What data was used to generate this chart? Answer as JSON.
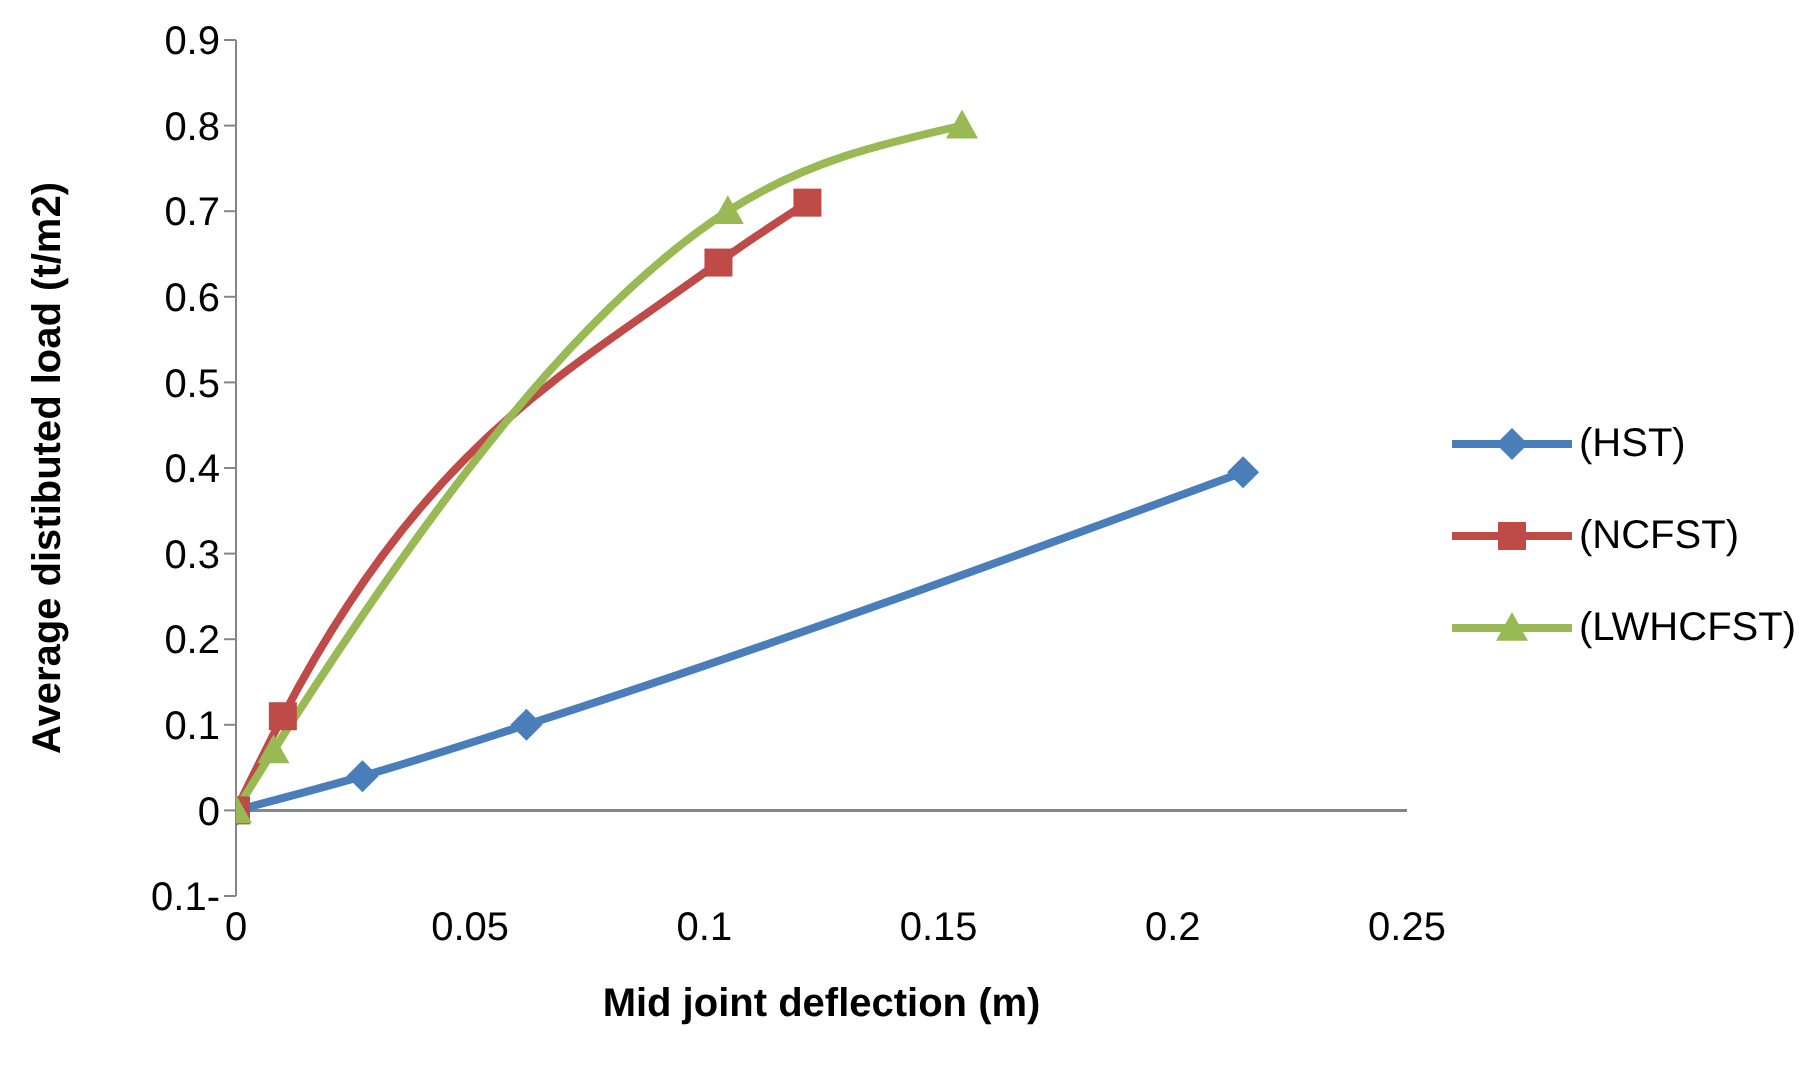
{
  "chart_data": {
    "type": "line",
    "xlabel": "Mid joint deflection (m)",
    "ylabel": "Average distibuted load (t/m2)",
    "xlim": [
      0,
      0.25
    ],
    "xticks": [
      0,
      0.05,
      0.1,
      0.15,
      0.2,
      0.25
    ],
    "ylim": [
      -0.1,
      0.9
    ],
    "yticks": [
      {
        "value": -0.1,
        "label": "0.1-"
      },
      0,
      0.1,
      0.2,
      0.3,
      0.4,
      0.5,
      0.6,
      0.7,
      0.8,
      0.9
    ],
    "legend": "right",
    "grid": false,
    "series": [
      {
        "name": "(HST)",
        "color": "#4a7ebb",
        "marker": "diamond",
        "x": [
          0,
          0.027,
          0.062,
          0.215
        ],
        "values": [
          0,
          0.04,
          0.1,
          0.395
        ]
      },
      {
        "name": "(NCFST)",
        "color": "#be4b48",
        "marker": "square",
        "x": [
          0,
          0.01,
          0.103,
          0.122
        ],
        "values": [
          0,
          0.11,
          0.64,
          0.71
        ]
      },
      {
        "name": "(LWHCFST)",
        "color": "#98b954",
        "marker": "triangle",
        "x": [
          0,
          0.008,
          0.105,
          0.155
        ],
        "values": [
          0,
          0.07,
          0.7,
          0.8
        ]
      }
    ]
  }
}
